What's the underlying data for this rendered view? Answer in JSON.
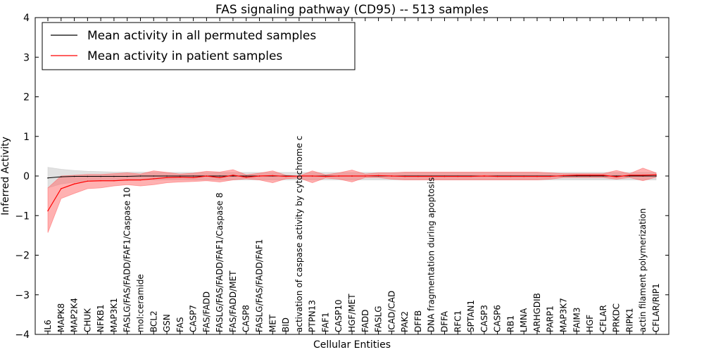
{
  "chart_data": {
    "type": "line",
    "title": "FAS signaling pathway (CD95) -- 513 samples",
    "xlabel": "Cellular Entities",
    "ylabel": "Inferred Activity",
    "ylim": [
      -4,
      4
    ],
    "yticks": [
      -4,
      -3,
      -2,
      -1,
      0,
      1,
      2,
      3,
      4
    ],
    "ytick_labels": [
      "−4",
      "−3",
      "−2",
      "−1",
      "0",
      "1",
      "2",
      "3",
      "4"
    ],
    "grid": false,
    "legend": "top-left",
    "categories": [
      "IL6",
      "MAPK8",
      "MAP2K4",
      "CHUK",
      "NFKB1",
      "MAP3K1",
      "FASLG/FAS/FADD/FAF1/Caspase 10",
      "mol:ceramide",
      "BCL2",
      "GSN",
      "FAS",
      "CASP7",
      "FAS/FADD",
      "FASLG/FAS/FADD/FAF1/Caspase 8",
      "FAS/FADD/MET",
      "CASP8",
      "FASLG/FAS/FADD/FAF1",
      "MET",
      "BID",
      "activation of caspase activity by cytochrome c",
      "PTPN13",
      "FAF1",
      "CASP10",
      "HGF/MET",
      "FADD",
      "FASLG",
      "ICAD/CAD",
      "PAK2",
      "DFFB",
      "DNA fragmentation during apoptosis",
      "DFFA",
      "RFC1",
      "SPTAN1",
      "CASP3",
      "CASP6",
      "RB1",
      "LMNA",
      "ARHGDIB",
      "PARP1",
      "MAP3K7",
      "FAIM3",
      "HGF",
      "CFLAR",
      "PRKDC",
      "RIPK1",
      "actin filament polymerization",
      "CFLAR/RIP1"
    ],
    "series": [
      {
        "name": "Mean activity in all permuted samples",
        "color": "#000000",
        "values": [
          -0.05,
          -0.02,
          -0.01,
          -0.01,
          -0.01,
          -0.01,
          -0.01,
          0.0,
          0.0,
          0.0,
          0.0,
          0.0,
          0.0,
          0.0,
          0.0,
          0.0,
          0.0,
          0.0,
          0.0,
          0.0,
          0.0,
          0.0,
          0.0,
          0.0,
          0.0,
          0.0,
          0.0,
          0.0,
          0.0,
          0.0,
          0.0,
          0.0,
          0.0,
          0.0,
          0.0,
          0.0,
          0.0,
          0.0,
          0.0,
          0.0,
          0.0,
          0.0,
          0.0,
          0.0,
          0.0,
          0.0,
          0.0
        ],
        "band_upper": [
          0.22,
          0.17,
          0.14,
          0.12,
          0.11,
          0.1,
          0.1,
          0.1,
          0.09,
          0.09,
          0.09,
          0.09,
          0.09,
          0.09,
          0.09,
          0.09,
          0.09,
          0.09,
          0.09,
          0.09,
          0.09,
          0.09,
          0.09,
          0.09,
          0.09,
          0.09,
          0.09,
          0.09,
          0.09,
          0.09,
          0.09,
          0.09,
          0.09,
          0.09,
          0.09,
          0.09,
          0.09,
          0.09,
          0.09,
          0.09,
          0.09,
          0.09,
          0.09,
          0.09,
          0.09,
          0.09,
          0.09
        ],
        "band_lower": [
          -0.3,
          -0.2,
          -0.16,
          -0.13,
          -0.12,
          -0.11,
          -0.11,
          -0.1,
          -0.1,
          -0.1,
          -0.1,
          -0.1,
          -0.1,
          -0.1,
          -0.1,
          -0.1,
          -0.1,
          -0.1,
          -0.1,
          -0.1,
          -0.1,
          -0.1,
          -0.1,
          -0.1,
          -0.1,
          -0.1,
          -0.1,
          -0.1,
          -0.1,
          -0.1,
          -0.1,
          -0.1,
          -0.1,
          -0.1,
          -0.1,
          -0.1,
          -0.1,
          -0.1,
          -0.1,
          -0.1,
          -0.1,
          -0.1,
          -0.1,
          -0.1,
          -0.1,
          -0.1,
          -0.1
        ],
        "band_color": "#c8c8c8"
      },
      {
        "name": "Mean activity in patient samples",
        "color": "#ff0000",
        "values": [
          -0.88,
          -0.32,
          -0.2,
          -0.13,
          -0.12,
          -0.12,
          -0.1,
          -0.1,
          -0.07,
          -0.04,
          -0.03,
          -0.04,
          0.0,
          -0.04,
          0.02,
          -0.03,
          0.0,
          0.01,
          -0.01,
          0.0,
          0.0,
          -0.01,
          0.0,
          0.0,
          0.0,
          0.01,
          0.0,
          -0.01,
          -0.01,
          -0.01,
          -0.01,
          -0.01,
          -0.01,
          0.0,
          -0.01,
          -0.01,
          -0.01,
          -0.01,
          -0.01,
          0.01,
          0.02,
          0.02,
          0.02,
          -0.02,
          0.02,
          0.02,
          0.03
        ],
        "band_upper": [
          -0.3,
          0.0,
          0.02,
          0.04,
          0.04,
          0.06,
          0.08,
          0.05,
          0.13,
          0.09,
          0.05,
          0.07,
          0.12,
          0.1,
          0.16,
          0.03,
          0.07,
          0.13,
          0.02,
          0.0,
          0.13,
          0.03,
          0.08,
          0.15,
          0.05,
          0.08,
          0.08,
          0.1,
          0.1,
          0.1,
          0.1,
          0.1,
          0.1,
          0.1,
          0.1,
          0.1,
          0.1,
          0.1,
          0.08,
          0.06,
          0.06,
          0.06,
          0.06,
          0.14,
          0.06,
          0.2,
          0.08
        ],
        "band_lower": [
          -1.43,
          -0.57,
          -0.44,
          -0.32,
          -0.3,
          -0.25,
          -0.22,
          -0.25,
          -0.22,
          -0.17,
          -0.15,
          -0.14,
          -0.12,
          -0.15,
          -0.1,
          -0.07,
          -0.1,
          -0.17,
          -0.07,
          -0.05,
          -0.17,
          -0.05,
          -0.08,
          -0.15,
          -0.04,
          -0.04,
          -0.08,
          -0.1,
          -0.1,
          -0.1,
          -0.1,
          -0.1,
          -0.1,
          -0.1,
          -0.1,
          -0.1,
          -0.1,
          -0.1,
          -0.08,
          -0.04,
          -0.04,
          -0.04,
          -0.04,
          -0.08,
          -0.04,
          -0.12,
          -0.03
        ],
        "band_color": "#ff6464"
      }
    ]
  }
}
